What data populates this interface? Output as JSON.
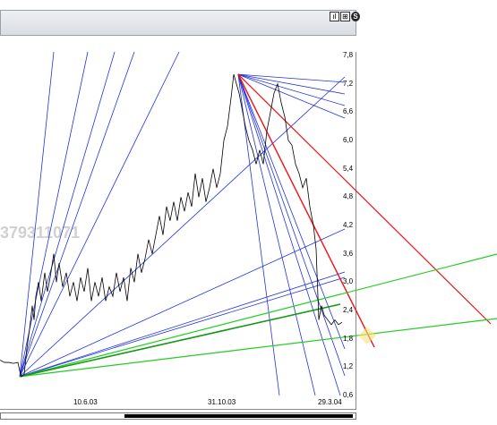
{
  "toolbar": {
    "buttons": [
      {
        "name": "bar-chart-icon",
        "glyph": "ıl"
      },
      {
        "name": "grid-icon",
        "glyph": "⊞"
      },
      {
        "name": "settings-icon",
        "glyph": "S"
      }
    ]
  },
  "watermark": "379311071",
  "chart_data": {
    "type": "line",
    "y_ticks": [
      "7,8",
      "7,2",
      "6,6",
      "6,0",
      "5,4",
      "4,8",
      "4,2",
      "3,6",
      "3,0",
      "2,4",
      "1,8",
      "1,2",
      "0,6"
    ],
    "x_ticks": [
      "10.6.03",
      "31.10.03",
      "29.3.04"
    ],
    "ylim": [
      0.6,
      7.8
    ],
    "series": [
      {
        "points": [
          [
            0,
            1.35
          ],
          [
            5,
            1.3
          ],
          [
            10,
            1.3
          ],
          [
            15,
            1.28
          ],
          [
            20,
            1.3
          ],
          [
            22,
            1.12
          ],
          [
            24,
            1.0
          ],
          [
            27,
            1.05
          ],
          [
            30,
            1.6
          ],
          [
            33,
            2.0
          ],
          [
            36,
            2.5
          ],
          [
            38,
            2.2
          ],
          [
            40,
            2.7
          ],
          [
            43,
            3.0
          ],
          [
            46,
            2.6
          ],
          [
            50,
            3.2
          ],
          [
            53,
            2.8
          ],
          [
            56,
            3.1
          ],
          [
            60,
            3.6
          ],
          [
            63,
            3.0
          ],
          [
            66,
            3.4
          ],
          [
            70,
            2.9
          ],
          [
            74,
            3.2
          ],
          [
            78,
            2.7
          ],
          [
            82,
            3.0
          ],
          [
            86,
            2.6
          ],
          [
            90,
            3.1
          ],
          [
            94,
            2.8
          ],
          [
            98,
            3.3
          ],
          [
            102,
            2.6
          ],
          [
            106,
            3.0
          ],
          [
            110,
            2.7
          ],
          [
            114,
            3.1
          ],
          [
            118,
            2.6
          ],
          [
            122,
            2.9
          ],
          [
            126,
            2.7
          ],
          [
            130,
            3.2
          ],
          [
            134,
            2.8
          ],
          [
            138,
            3.1
          ],
          [
            142,
            2.6
          ],
          [
            146,
            3.3
          ],
          [
            150,
            3.0
          ],
          [
            154,
            3.6
          ],
          [
            158,
            3.2
          ],
          [
            162,
            3.5
          ],
          [
            166,
            3.9
          ],
          [
            170,
            3.6
          ],
          [
            174,
            4.0
          ],
          [
            178,
            4.4
          ],
          [
            182,
            4.0
          ],
          [
            186,
            4.6
          ],
          [
            190,
            4.3
          ],
          [
            194,
            4.7
          ],
          [
            198,
            4.3
          ],
          [
            202,
            4.8
          ],
          [
            206,
            4.5
          ],
          [
            210,
            4.9
          ],
          [
            214,
            4.6
          ],
          [
            218,
            5.3
          ],
          [
            222,
            4.8
          ],
          [
            226,
            5.2
          ],
          [
            230,
            4.7
          ],
          [
            234,
            5.0
          ],
          [
            238,
            5.4
          ],
          [
            242,
            5.0
          ],
          [
            246,
            5.3
          ],
          [
            250,
            6.0
          ],
          [
            254,
            6.3
          ],
          [
            258,
            6.9
          ],
          [
            261,
            7.4
          ],
          [
            264,
            7.2
          ],
          [
            267,
            7.0
          ],
          [
            270,
            6.7
          ],
          [
            274,
            6.3
          ],
          [
            278,
            6.0
          ],
          [
            282,
            5.8
          ],
          [
            286,
            5.5
          ],
          [
            290,
            5.8
          ],
          [
            294,
            5.5
          ],
          [
            298,
            6.2
          ],
          [
            302,
            6.6
          ],
          [
            306,
            7.0
          ],
          [
            310,
            7.2
          ],
          [
            314,
            6.8
          ],
          [
            318,
            6.5
          ],
          [
            322,
            6.0
          ],
          [
            326,
            5.9
          ],
          [
            330,
            5.5
          ],
          [
            334,
            5.3
          ],
          [
            338,
            5.0
          ],
          [
            342,
            5.2
          ],
          [
            346,
            4.6
          ],
          [
            350,
            4.2
          ],
          [
            353,
            3.7
          ],
          [
            356,
            2.2
          ],
          [
            359,
            2.5
          ],
          [
            362,
            2.3
          ],
          [
            366,
            2.2
          ],
          [
            370,
            2.1
          ],
          [
            374,
            2.2
          ],
          [
            378,
            2.1
          ],
          [
            382,
            2.15
          ]
        ]
      }
    ],
    "lines": {
      "blue_fan_low_origin": [
        22,
        1.0
      ],
      "blue_fan_high_origin": [
        266,
        7.4
      ],
      "red_origin": [
        266,
        7.4
      ],
      "green_origin": [
        22,
        1.0
      ]
    },
    "colors": {
      "price": "#000000",
      "fan": "#2233dd",
      "red": "#ee1111",
      "green": "#22cc22",
      "highlight": "#f5e27a"
    }
  }
}
